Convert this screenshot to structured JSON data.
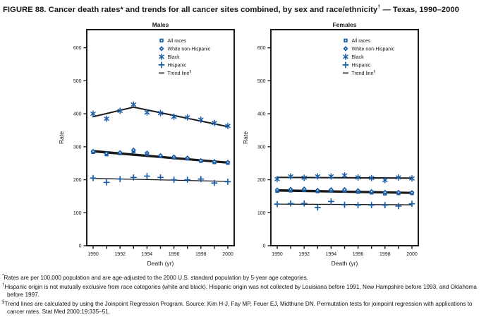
{
  "title": {
    "part1": "FIGURE 88. Cancer death rates* and trends for all cancer sites combined, by sex and race/ethnicity",
    "sup": "†",
    "part2": " — Texas, 1990–2000"
  },
  "colors": {
    "marker_blue": "#1b5fa8",
    "line_black": "#1a1a1a"
  },
  "chart_data": [
    {
      "type": "scatter",
      "title": "Males",
      "xlabel": "Death (yr)",
      "ylabel": "Rate",
      "x": [
        1990,
        1991,
        1992,
        1993,
        1994,
        1995,
        1996,
        1997,
        1998,
        1999,
        2000
      ],
      "xtick_labels": [
        "1990",
        "1992",
        "1994",
        "1996",
        "1998",
        "2000"
      ],
      "yticks": [
        0,
        100,
        200,
        300,
        400,
        500,
        600
      ],
      "ylim": [
        0,
        655
      ],
      "grid": false,
      "legend_position": "upper-middle-inside",
      "series": [
        {
          "name": "All races",
          "marker": "square",
          "values": [
            284,
            277,
            280,
            286,
            278,
            271,
            267,
            264,
            257,
            253,
            251
          ]
        },
        {
          "name": "White non-Hispanic",
          "marker": "diamond",
          "values": [
            286,
            280,
            282,
            290,
            281,
            273,
            269,
            266,
            258,
            255,
            253
          ]
        },
        {
          "name": "Black",
          "marker": "asterisk",
          "values": [
            400,
            385,
            409,
            428,
            404,
            402,
            391,
            389,
            382,
            372,
            363
          ]
        },
        {
          "name": "Hispanic",
          "marker": "plus",
          "values": [
            205,
            192,
            202,
            207,
            211,
            207,
            200,
            200,
            202,
            190,
            194
          ]
        }
      ],
      "trend_lines": [
        {
          "series": "Black",
          "points": [
            [
              1990,
              391
            ],
            [
              1993,
              420
            ],
            [
              2000,
              361
            ]
          ],
          "width": 2
        },
        {
          "series": "All races",
          "points": [
            [
              1990,
              287
            ],
            [
              2000,
              252
            ]
          ],
          "width": 3
        },
        {
          "series": "White non-Hispanic",
          "points": [
            [
              1990,
              284
            ],
            [
              2000,
              250
            ]
          ],
          "width": 1.3
        },
        {
          "series": "Hispanic",
          "points": [
            [
              1990,
              204
            ],
            [
              2000,
              195
            ]
          ],
          "width": 1.3
        }
      ],
      "legend": [
        {
          "label": "All races",
          "marker": "square"
        },
        {
          "label": "White non-Hispanic",
          "marker": "diamond"
        },
        {
          "label": "Black",
          "marker": "asterisk"
        },
        {
          "label": "Hispanic",
          "marker": "plus"
        },
        {
          "label": "Trend line",
          "sup": "§",
          "marker": "trend"
        }
      ]
    },
    {
      "type": "scatter",
      "title": "Females",
      "xlabel": "Death (yr)",
      "ylabel": "Rate",
      "x": [
        1990,
        1991,
        1992,
        1993,
        1994,
        1995,
        1996,
        1997,
        1998,
        1999,
        2000
      ],
      "xtick_labels": [
        "1990",
        "1992",
        "1994",
        "1996",
        "1998",
        "2000"
      ],
      "yticks": [
        0,
        100,
        200,
        300,
        400,
        500,
        600
      ],
      "ylim": [
        0,
        655
      ],
      "grid": false,
      "legend_position": "upper-middle-inside",
      "series": [
        {
          "name": "All races",
          "marker": "square",
          "values": [
            166,
            167,
            169,
            165,
            166,
            167,
            163,
            161,
            158,
            159,
            159
          ]
        },
        {
          "name": "White non-Hispanic",
          "marker": "diamond",
          "values": [
            169,
            171,
            172,
            168,
            170,
            170,
            167,
            164,
            162,
            162,
            161
          ]
        },
        {
          "name": "Black",
          "marker": "asterisk",
          "values": [
            202,
            210,
            206,
            210,
            210,
            213,
            207,
            205,
            199,
            207,
            204
          ]
        },
        {
          "name": "Hispanic",
          "marker": "plus",
          "values": [
            126,
            128,
            128,
            116,
            134,
            124,
            123,
            123,
            123,
            120,
            127
          ]
        }
      ],
      "trend_lines": [
        {
          "series": "Black",
          "points": [
            [
              1990,
              207
            ],
            [
              2000,
              205
            ]
          ],
          "width": 2
        },
        {
          "series": "All races",
          "points": [
            [
              1990,
              167
            ],
            [
              2000,
              160
            ]
          ],
          "width": 3
        },
        {
          "series": "White non-Hispanic",
          "points": [
            [
              1990,
              170
            ],
            [
              2000,
              162
            ]
          ],
          "width": 1.3
        },
        {
          "series": "Hispanic",
          "points": [
            [
              1990,
              126
            ],
            [
              2000,
              124
            ]
          ],
          "width": 1.3
        }
      ],
      "legend": [
        {
          "label": "All races",
          "marker": "square"
        },
        {
          "label": "White non-Hispanic",
          "marker": "diamond"
        },
        {
          "label": "Black",
          "marker": "asterisk"
        },
        {
          "label": "Hispanic",
          "marker": "plus"
        },
        {
          "label": "Trend line",
          "sup": "§",
          "marker": "trend"
        }
      ]
    }
  ],
  "footnotes": [
    {
      "symbol": "*",
      "text": "Rates are per 100,000 population and are age-adjusted to the 2000 U.S. standard population by 5-year age categories."
    },
    {
      "symbol": "†",
      "text": "Hispanic origin is not mutually exclusive from race categories (white and black). Hispanic origin was not collected by Louisiana before 1991, New Hampshire before 1993, and Oklahoma before 1997."
    },
    {
      "symbol": "§",
      "text": "Trend lines are calculated by using the Joinpoint Regression Program. Source: Kim H-J, Fay MP, Feuer EJ, Midthune DN. Permutation tests for joinpoint regression with applications to cancer rates. Stat Med 2000;19:335–51."
    }
  ]
}
